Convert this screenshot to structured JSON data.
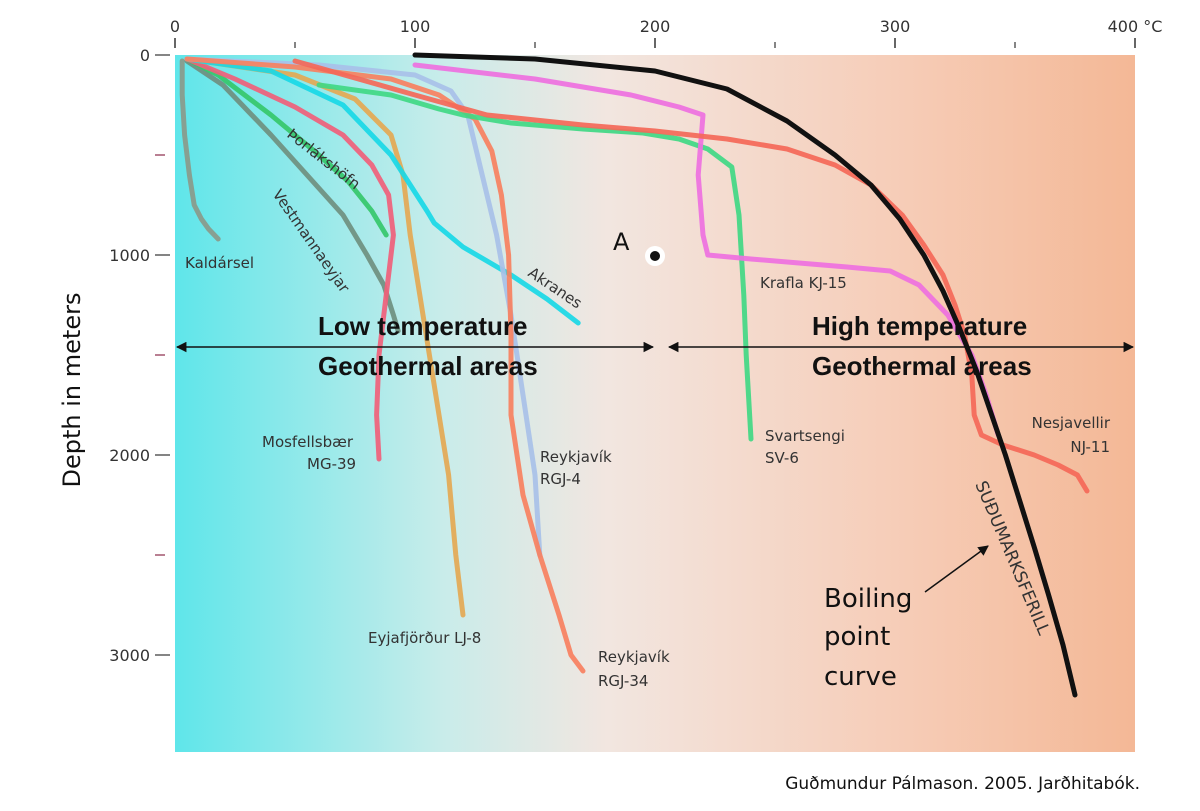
{
  "chart_data": {
    "type": "line",
    "ylabel": "Depth in meters",
    "x_ticks": [
      "0",
      "100",
      "200",
      "300",
      "400 °C"
    ],
    "y_ticks": [
      "0",
      "1000",
      "2000",
      "3000"
    ],
    "xlim": [
      0,
      400
    ],
    "ylim": [
      0,
      3500
    ],
    "y_inverted": true,
    "x_axis_position": "top",
    "series": [
      {
        "name": "Kaldársel",
        "color": "#8a9a8a",
        "x": [
          3,
          3,
          4,
          6,
          8,
          11,
          14,
          18
        ],
        "y": [
          30,
          200,
          400,
          600,
          750,
          820,
          870,
          920
        ]
      },
      {
        "name": "Vestmannaeyjar",
        "color": "#6f8f7f",
        "x": [
          5,
          20,
          40,
          55,
          70,
          80,
          87,
          91,
          93
        ],
        "y": [
          30,
          150,
          400,
          600,
          800,
          1000,
          1150,
          1300,
          1380
        ]
      },
      {
        "name": "Þorlákshöfn",
        "color": "#35c76a",
        "x": [
          5,
          18,
          40,
          58,
          72,
          82,
          88
        ],
        "y": [
          20,
          100,
          300,
          480,
          630,
          780,
          900
        ]
      },
      {
        "name": "Mosfellsbær MG-39",
        "color": "#f0607a",
        "x": [
          5,
          25,
          50,
          70,
          82,
          89,
          91,
          88,
          85,
          84,
          85
        ],
        "y": [
          20,
          120,
          260,
          400,
          550,
          700,
          900,
          1200,
          1500,
          1800,
          2020
        ]
      },
      {
        "name": "Eyjafjörður LJ-8",
        "color": "#e4a853",
        "x": [
          5,
          50,
          75,
          90,
          95,
          98,
          102,
          106,
          110,
          114,
          117,
          120
        ],
        "y": [
          20,
          100,
          220,
          400,
          600,
          900,
          1200,
          1500,
          1800,
          2100,
          2500,
          2800
        ]
      },
      {
        "name": "Akranes",
        "color": "#19d8e6",
        "x": [
          5,
          40,
          70,
          90,
          105,
          108,
          120,
          140,
          155,
          168
        ],
        "y": [
          20,
          80,
          250,
          500,
          780,
          840,
          960,
          1100,
          1220,
          1340
        ]
      },
      {
        "name": "Reykjavík RGJ-4",
        "color": "#a8c0e8",
        "x": [
          5,
          60,
          100,
          115,
          122,
          128,
          134,
          140,
          145,
          150,
          152
        ],
        "y": [
          20,
          50,
          100,
          180,
          300,
          600,
          900,
          1300,
          1700,
          2100,
          2500
        ]
      },
      {
        "name": "Reykjavík RGJ-34",
        "color": "#f78060",
        "x": [
          5,
          50,
          90,
          110,
          125,
          132,
          136,
          139,
          140,
          140,
          145,
          152,
          160,
          165,
          170
        ],
        "y": [
          20,
          60,
          120,
          200,
          320,
          480,
          700,
          1000,
          1400,
          1800,
          2200,
          2500,
          2800,
          3000,
          3080
        ]
      },
      {
        "name": "Svartsengi SV-6",
        "color": "#40d884",
        "x": [
          60,
          90,
          110,
          120,
          140,
          170,
          195,
          210,
          222,
          232,
          235,
          237,
          238,
          240
        ],
        "y": [
          150,
          200,
          270,
          300,
          340,
          370,
          390,
          420,
          470,
          560,
          800,
          1200,
          1500,
          1920
        ]
      },
      {
        "name": "Krafla KJ-15",
        "color": "#ee70e0",
        "x": [
          100,
          150,
          190,
          210,
          220,
          218,
          220,
          222,
          240,
          260,
          280,
          298,
          310,
          322,
          332,
          338,
          343
        ],
        "y": [
          50,
          120,
          200,
          260,
          300,
          600,
          900,
          1000,
          1020,
          1040,
          1060,
          1080,
          1150,
          1300,
          1500,
          1700,
          1900
        ]
      },
      {
        "name": "Nesjavellir NJ-11",
        "color": "#f46858",
        "x": [
          50,
          100,
          130,
          170,
          200,
          230,
          255,
          275,
          290,
          303,
          312,
          320,
          325,
          329,
          332,
          333,
          336,
          345,
          358,
          368,
          376,
          380
        ],
        "y": [
          30,
          200,
          300,
          350,
          380,
          420,
          470,
          550,
          650,
          800,
          950,
          1100,
          1250,
          1400,
          1600,
          1800,
          1900,
          1950,
          2000,
          2050,
          2100,
          2180
        ]
      },
      {
        "name": "SUÐUMARKSFERILL",
        "color": "#111111",
        "x": [
          100,
          150,
          200,
          230,
          255,
          275,
          290,
          302,
          312,
          320,
          327,
          334,
          340,
          346,
          352,
          358,
          364,
          370,
          375
        ],
        "y": [
          0,
          20,
          80,
          170,
          330,
          500,
          650,
          820,
          1000,
          1180,
          1370,
          1580,
          1790,
          2000,
          2230,
          2460,
          2700,
          2950,
          3200
        ]
      }
    ],
    "point": {
      "label": "A",
      "x": 200,
      "y": 1000
    },
    "regions": [
      {
        "label_line1": "Low temperature",
        "label_line2": "Geothermal areas",
        "x_range": [
          0,
          200
        ],
        "y": 1450
      },
      {
        "label_line1": "High temperature",
        "label_line2": "Geothermal areas",
        "x_range": [
          205,
          400
        ],
        "y": 1450
      }
    ],
    "annotation": {
      "line1": "Boiling",
      "line2": "point",
      "line3": "curve"
    },
    "grid": false
  },
  "caption": "Guðmundur Pálmason.  2005.  Jarðhitabók."
}
